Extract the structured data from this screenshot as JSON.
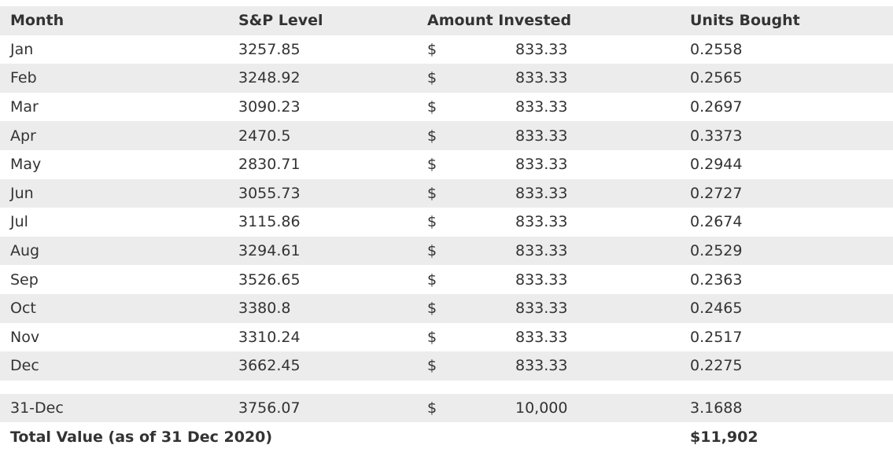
{
  "headers": {
    "month": "Month",
    "level": "S&P Level",
    "amount": "Amount Invested",
    "units": "Units Bought"
  },
  "rows": [
    {
      "month": "Jan",
      "level": "3257.85",
      "dollar": "$",
      "amount": "833.33",
      "units": "0.2558"
    },
    {
      "month": "Feb",
      "level": "3248.92",
      "dollar": "$",
      "amount": "833.33",
      "units": "0.2565"
    },
    {
      "month": "Mar",
      "level": "3090.23",
      "dollar": "$",
      "amount": "833.33",
      "units": "0.2697"
    },
    {
      "month": "Apr",
      "level": "2470.5",
      "dollar": "$",
      "amount": "833.33",
      "units": "0.3373"
    },
    {
      "month": "May",
      "level": "2830.71",
      "dollar": "$",
      "amount": "833.33",
      "units": "0.2944"
    },
    {
      "month": "Jun",
      "level": "3055.73",
      "dollar": "$",
      "amount": "833.33",
      "units": "0.2727"
    },
    {
      "month": "Jul",
      "level": "3115.86",
      "dollar": "$",
      "amount": "833.33",
      "units": "0.2674"
    },
    {
      "month": "Aug",
      "level": "3294.61",
      "dollar": "$",
      "amount": "833.33",
      "units": "0.2529"
    },
    {
      "month": "Sep",
      "level": "3526.65",
      "dollar": "$",
      "amount": "833.33",
      "units": "0.2363"
    },
    {
      "month": "Oct",
      "level": "3380.8",
      "dollar": "$",
      "amount": "833.33",
      "units": "0.2465"
    },
    {
      "month": "Nov",
      "level": "3310.24",
      "dollar": "$",
      "amount": "833.33",
      "units": "0.2517"
    },
    {
      "month": "Dec",
      "level": "3662.45",
      "dollar": "$",
      "amount": "833.33",
      "units": "0.2275"
    }
  ],
  "summary": {
    "month": "31-Dec",
    "level": "3756.07",
    "dollar": "$",
    "amount": "10,000",
    "units": "3.1688"
  },
  "total": {
    "label": "Total Value (as of 31 Dec 2020)",
    "value": "$11,902"
  },
  "colors": {
    "shade": "#ececec",
    "text": "#333333"
  }
}
